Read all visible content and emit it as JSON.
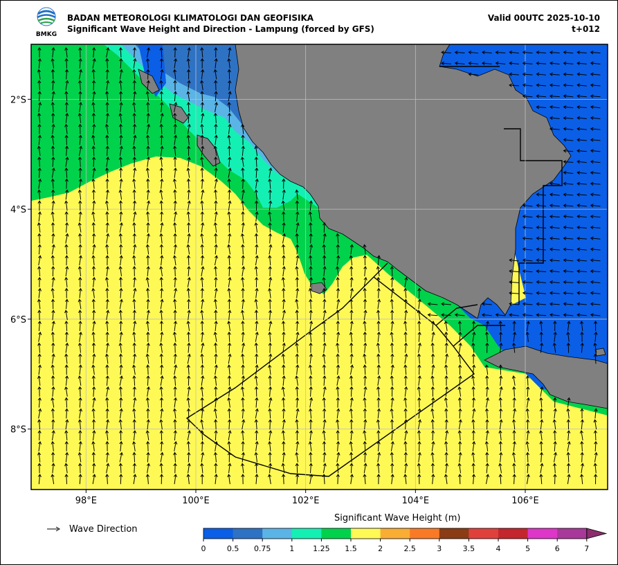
{
  "header": {
    "agency": "BADAN METEOROLOGI KLIMATOLOGI DAN GEOFISIKA",
    "product": "Significant Wave Height and Direction - Lampung (forced by GFS)",
    "valid": "Valid 00UTC 2025-10-10",
    "step": "t+012",
    "logo_text": "BMKG"
  },
  "map": {
    "lon_range": [
      97.0,
      107.5
    ],
    "lat_range": [
      -9.1,
      -1.0
    ],
    "lon_ticks": [
      {
        "value": 98,
        "label": "98°E"
      },
      {
        "value": 100,
        "label": "100°E"
      },
      {
        "value": 102,
        "label": "102°E"
      },
      {
        "value": 104,
        "label": "104°E"
      },
      {
        "value": 106,
        "label": "106°E"
      }
    ],
    "lat_ticks": [
      {
        "value": -2,
        "label": "2°S"
      },
      {
        "value": -4,
        "label": "4°S"
      },
      {
        "value": -6,
        "label": "6°S"
      },
      {
        "value": -8,
        "label": "8°S"
      }
    ],
    "colors": {
      "land": "#808080",
      "grid": "#bfbfbf"
    }
  },
  "legend": {
    "arrow_label": "Wave Direction",
    "colorbar_title": "Significant Wave Height (m)",
    "levels": [
      "0",
      "0.5",
      "0.75",
      "1",
      "1.25",
      "1.5",
      "2",
      "2.5",
      "3",
      "3.5",
      "4",
      "5",
      "6",
      "7"
    ],
    "colors": [
      "#0b5fe6",
      "#2e72c4",
      "#5bb4e6",
      "#14f0b4",
      "#00d24b",
      "#fff955",
      "#f9ad33",
      "#f97a26",
      "#8b3c14",
      "#e0403c",
      "#c4262e",
      "#de36c8",
      "#a8389a",
      "#8c2e6e"
    ]
  }
}
